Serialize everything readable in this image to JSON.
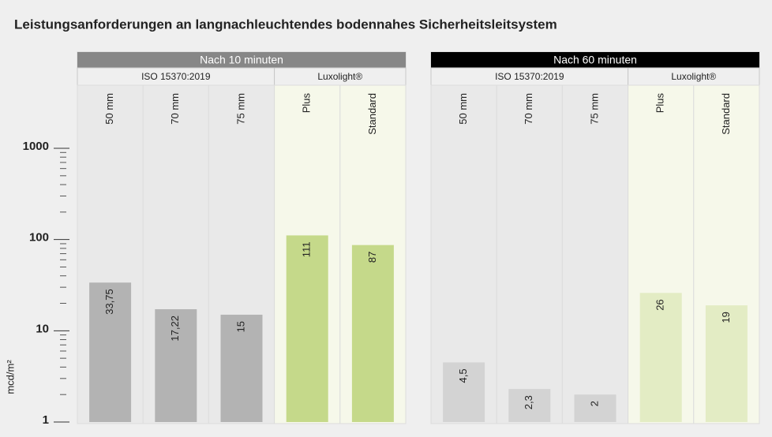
{
  "title": "Leistungsanforderungen an langnachleuchtendes bodennahes Sicherheitsleitsystem",
  "chart_data": [
    {
      "type": "bar",
      "panel_title": "Nach 10 minuten",
      "header_color": "#878787",
      "log_scale": true,
      "ylim": [
        1,
        1000
      ],
      "yticks": [
        1,
        10,
        100,
        1000
      ],
      "minor_yticks": [
        2,
        3,
        4,
        5,
        6,
        7,
        8,
        9,
        20,
        30,
        40,
        50,
        60,
        70,
        80,
        90,
        200,
        300,
        400,
        500,
        600,
        700,
        800,
        900
      ],
      "ylabel": "mcd/m²",
      "groups": [
        {
          "name": "ISO 15370:2019",
          "color": "#b3b3b3",
          "column_color": "#e9e9e9",
          "categories": [
            "50 mm",
            "70 mm",
            "75 mm"
          ],
          "values": [
            33.75,
            17.22,
            15
          ],
          "value_labels": [
            "33,75",
            "17,22",
            "15"
          ]
        },
        {
          "name": "Luxolight®",
          "color": "#c5d98a",
          "column_color": "#f6f8ea",
          "categories": [
            "Plus",
            "Standard"
          ],
          "values": [
            111,
            87
          ]
        }
      ]
    },
    {
      "type": "bar",
      "panel_title": "Nach 60 minuten",
      "header_color": "#000000",
      "log_scale": true,
      "ylim": [
        1,
        1000
      ],
      "groups": [
        {
          "name": "ISO 15370:2019",
          "color": "#d3d3d3",
          "column_color": "#e9e9e9",
          "categories": [
            "50 mm",
            "70 mm",
            "75 mm"
          ],
          "values": [
            4.5,
            2.3,
            2
          ],
          "value_labels": [
            "4,5",
            "2,3",
            "2"
          ]
        },
        {
          "name": "Luxolight®",
          "color": "#e3ecc4",
          "column_color": "#f6f8ea",
          "categories": [
            "Plus",
            "Standard"
          ],
          "values": [
            26,
            19
          ]
        }
      ]
    }
  ]
}
